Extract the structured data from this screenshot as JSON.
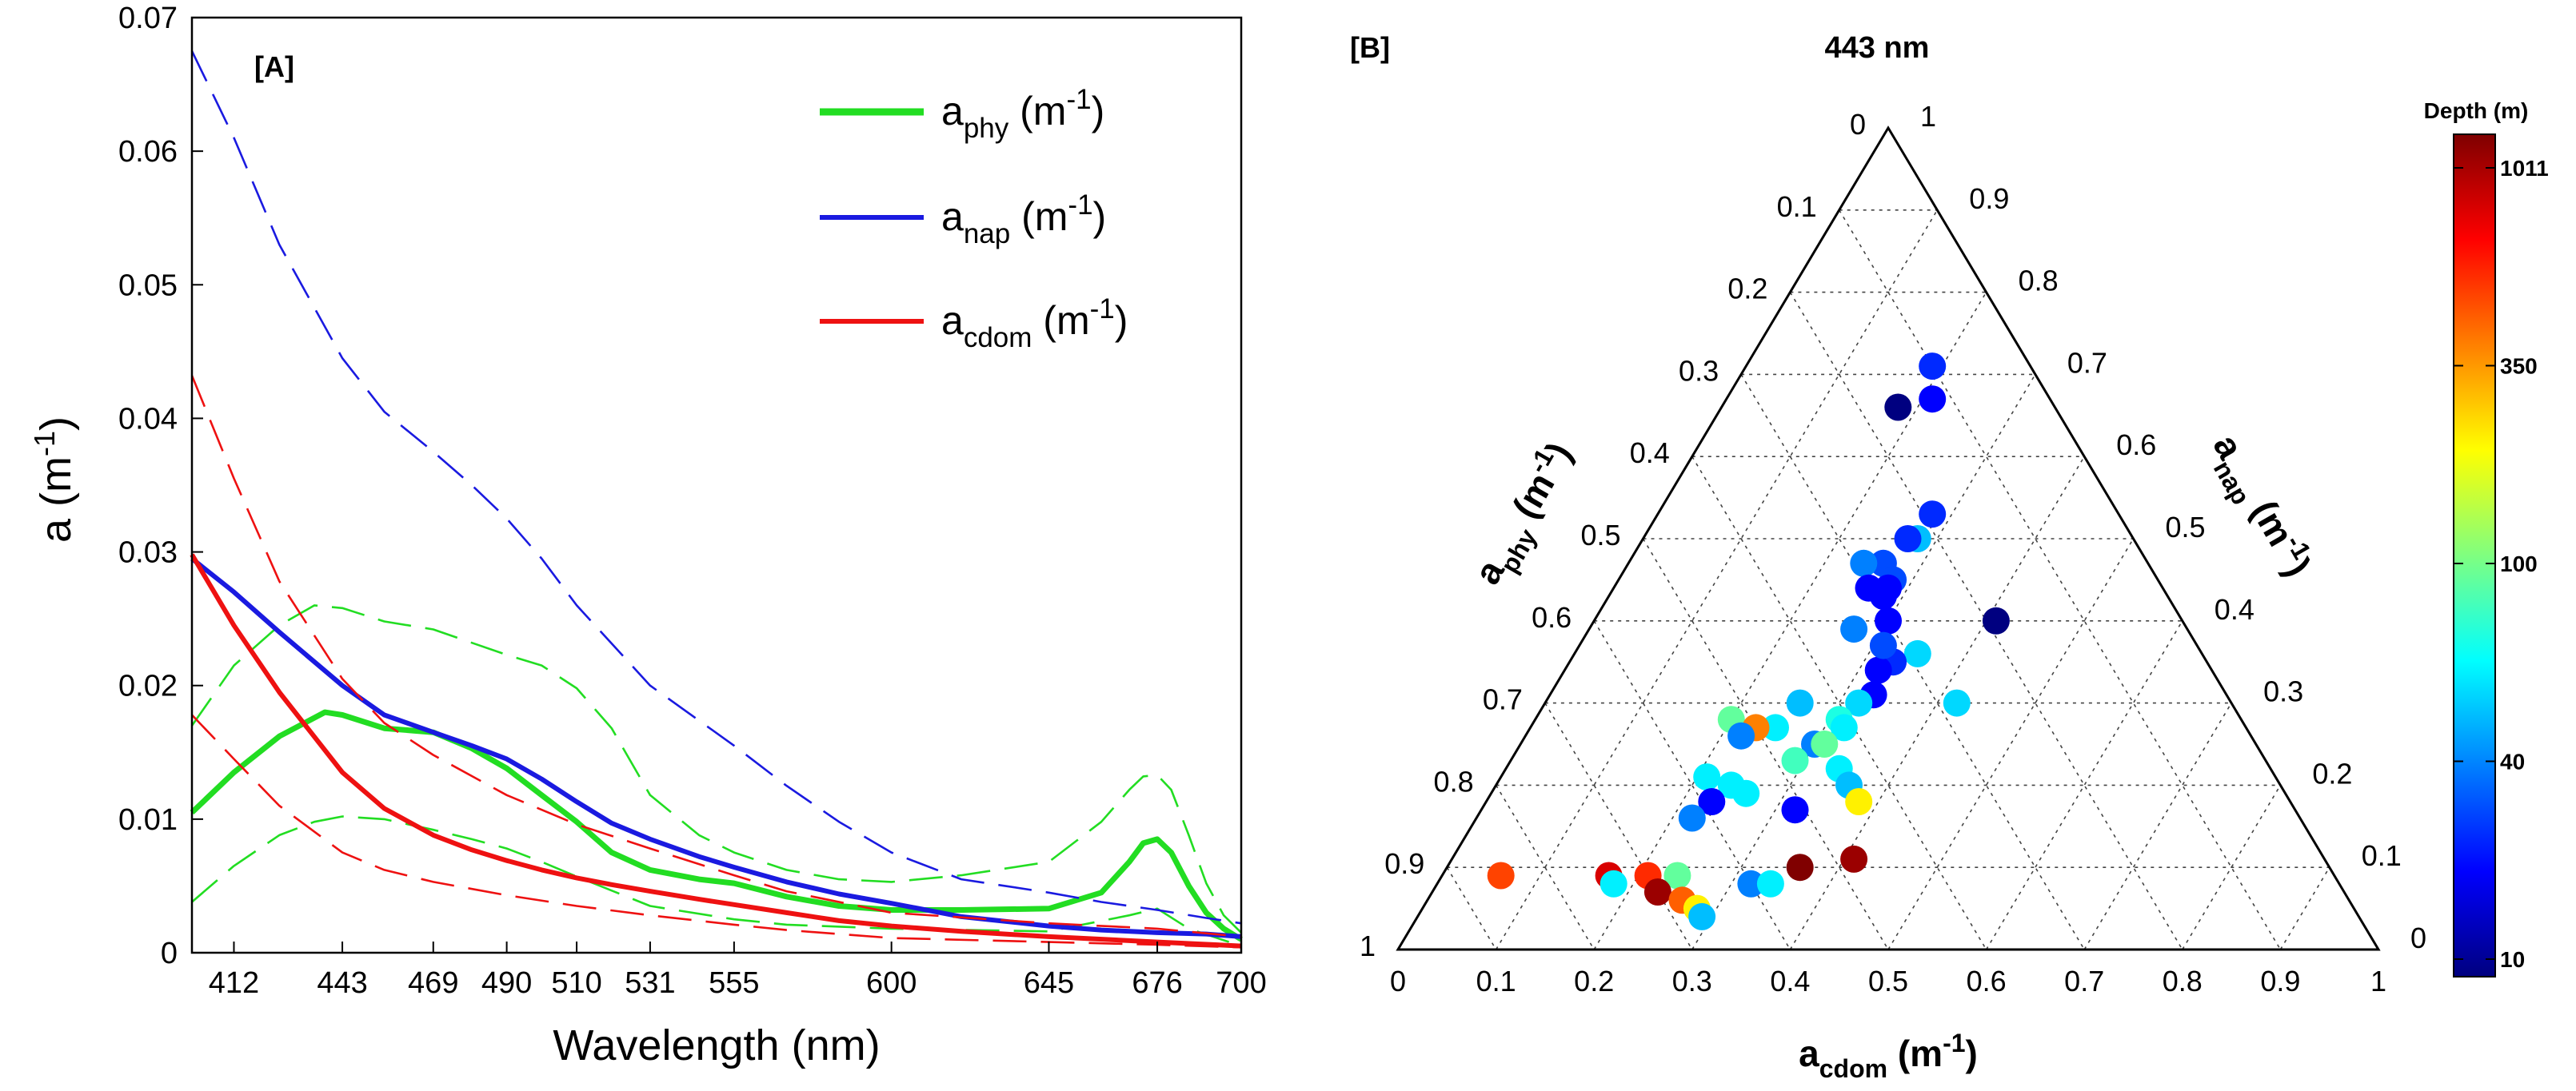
{
  "chart_data": [
    {
      "type": "line",
      "panel_label": "[A]",
      "xlabel": "Wavelength (nm)",
      "ylabel_base": "a (m",
      "ylabel_sup": "-1",
      "ylabel_tail": ")",
      "xlim": [
        400,
        700
      ],
      "ylim": [
        0,
        0.07
      ],
      "xticks": [
        412,
        443,
        469,
        490,
        510,
        531,
        555,
        600,
        645,
        676,
        700
      ],
      "yticks": [
        0,
        0.01,
        0.02,
        0.03,
        0.04,
        0.05,
        0.06,
        0.07
      ],
      "ytick_labels": [
        "0",
        "0.01",
        "0.02",
        "0.03",
        "0.04",
        "0.05",
        "0.06",
        "0.07"
      ],
      "grid": false,
      "legend_position": "top-right",
      "series": [
        {
          "name": "a_phy (m^-1)",
          "legend_base": "a",
          "legend_sub": "phy",
          "legend_mid": " (m",
          "legend_sup": "-1",
          "legend_tail": ")",
          "color": "#22dd22",
          "style": "mean",
          "x": [
            400,
            412,
            425,
            438,
            443,
            455,
            469,
            480,
            490,
            500,
            510,
            520,
            531,
            545,
            555,
            570,
            585,
            600,
            620,
            645,
            660,
            668,
            672,
            676,
            680,
            685,
            690,
            695,
            700
          ],
          "y": [
            0.0105,
            0.0135,
            0.0162,
            0.018,
            0.0178,
            0.0168,
            0.0165,
            0.0153,
            0.0138,
            0.0118,
            0.0098,
            0.0075,
            0.0062,
            0.0055,
            0.0052,
            0.0042,
            0.0035,
            0.0032,
            0.0032,
            0.0033,
            0.0045,
            0.0068,
            0.0082,
            0.0085,
            0.0075,
            0.005,
            0.003,
            0.0018,
            0.001
          ]
        },
        {
          "name": "a_phy (m^-1) envelope upper",
          "color": "#22dd22",
          "style": "envelope",
          "x": [
            400,
            412,
            425,
            435,
            443,
            455,
            469,
            480,
            490,
            500,
            510,
            520,
            531,
            545,
            555,
            570,
            585,
            600,
            620,
            645,
            660,
            668,
            672,
            676,
            680,
            685,
            690,
            695,
            700
          ],
          "y": [
            0.017,
            0.0215,
            0.0245,
            0.026,
            0.0258,
            0.0248,
            0.0242,
            0.0232,
            0.0223,
            0.0215,
            0.0198,
            0.0168,
            0.0118,
            0.0088,
            0.0075,
            0.0062,
            0.0055,
            0.0053,
            0.0058,
            0.0068,
            0.0098,
            0.0122,
            0.0132,
            0.0133,
            0.0122,
            0.0088,
            0.0052,
            0.0028,
            0.0015
          ]
        },
        {
          "name": "a_phy (m^-1) envelope lower",
          "color": "#22dd22",
          "style": "envelope",
          "x": [
            400,
            412,
            425,
            435,
            443,
            455,
            469,
            480,
            490,
            500,
            510,
            531,
            555,
            570,
            600,
            645,
            668,
            676,
            685,
            700
          ],
          "y": [
            0.0038,
            0.0065,
            0.0088,
            0.0098,
            0.0102,
            0.01,
            0.0092,
            0.0085,
            0.0078,
            0.0068,
            0.0057,
            0.0035,
            0.0025,
            0.0021,
            0.0018,
            0.0016,
            0.0028,
            0.0033,
            0.0018,
            0.0005
          ]
        },
        {
          "name": "a_nap (m^-1)",
          "legend_base": "a",
          "legend_sub": "nap",
          "legend_mid": " (m",
          "legend_sup": "-1",
          "legend_tail": ")",
          "color": "#1a1ae0",
          "style": "mean",
          "x": [
            400,
            412,
            425,
            443,
            455,
            469,
            480,
            490,
            500,
            510,
            520,
            531,
            545,
            555,
            570,
            585,
            600,
            620,
            645,
            660,
            676,
            690,
            700
          ],
          "y": [
            0.0295,
            0.027,
            0.024,
            0.02,
            0.0178,
            0.0165,
            0.0155,
            0.0145,
            0.013,
            0.0113,
            0.0097,
            0.0085,
            0.0072,
            0.0064,
            0.0053,
            0.0044,
            0.0037,
            0.0027,
            0.002,
            0.0017,
            0.0015,
            0.0014,
            0.0012
          ]
        },
        {
          "name": "a_nap (m^-1) envelope upper",
          "color": "#1a1ae0",
          "style": "envelope",
          "x": [
            400,
            412,
            425,
            443,
            455,
            469,
            480,
            490,
            500,
            510,
            531,
            555,
            570,
            585,
            600,
            620,
            645,
            660,
            676,
            690,
            700
          ],
          "y": [
            0.0675,
            0.061,
            0.053,
            0.0445,
            0.0405,
            0.0375,
            0.035,
            0.0325,
            0.0295,
            0.026,
            0.02,
            0.0155,
            0.0125,
            0.0098,
            0.0075,
            0.0055,
            0.0045,
            0.0038,
            0.0032,
            0.0026,
            0.0022
          ]
        },
        {
          "name": "a_cdom (m^-1)",
          "legend_base": "a",
          "legend_sub": "cdom",
          "legend_mid": " (m",
          "legend_sup": "-1",
          "legend_tail": ")",
          "color": "#ee1111",
          "style": "mean",
          "x": [
            400,
            412,
            425,
            443,
            455,
            469,
            480,
            490,
            500,
            510,
            520,
            531,
            545,
            555,
            570,
            585,
            600,
            620,
            645,
            676,
            700
          ],
          "y": [
            0.0298,
            0.0245,
            0.0195,
            0.0135,
            0.0108,
            0.0088,
            0.0077,
            0.0069,
            0.0062,
            0.0056,
            0.0051,
            0.0046,
            0.004,
            0.0036,
            0.003,
            0.0024,
            0.002,
            0.0016,
            0.0012,
            0.0008,
            0.0005
          ]
        },
        {
          "name": "a_cdom (m^-1) envelope upper",
          "color": "#ee1111",
          "style": "envelope",
          "x": [
            400,
            412,
            425,
            443,
            455,
            469,
            490,
            510,
            531,
            555,
            570,
            600,
            645,
            676,
            700
          ],
          "y": [
            0.0432,
            0.0355,
            0.0278,
            0.0205,
            0.0172,
            0.0148,
            0.0118,
            0.0096,
            0.0078,
            0.0058,
            0.0046,
            0.003,
            0.0022,
            0.0018,
            0.0012
          ]
        },
        {
          "name": "a_cdom (m^-1) envelope lower",
          "color": "#ee1111",
          "style": "envelope",
          "x": [
            400,
            412,
            425,
            443,
            455,
            469,
            490,
            510,
            531,
            555,
            570,
            600,
            645,
            676,
            700
          ],
          "y": [
            0.0178,
            0.0145,
            0.011,
            0.0075,
            0.0062,
            0.0053,
            0.0043,
            0.0035,
            0.0028,
            0.0021,
            0.0017,
            0.0011,
            0.0008,
            0.0006,
            0.0004
          ]
        }
      ]
    },
    {
      "type": "scatter",
      "subtype": "ternary",
      "panel_label": "[B]",
      "title": "443 nm",
      "axes": {
        "phy": {
          "label_base": "a",
          "label_sub": "phy",
          "label_mid": " (m",
          "label_sup": "-1",
          "label_tail": ")"
        },
        "nap": {
          "label_base": "a",
          "label_sub": "nap",
          "label_mid": " (m",
          "label_sup": "-1",
          "label_tail": ")"
        },
        "cdom": {
          "label_base": "a",
          "label_sub": "cdom",
          "label_mid": " (m",
          "label_sup": "-1",
          "label_tail": ")"
        }
      },
      "tick_values": [
        0,
        0.1,
        0.2,
        0.3,
        0.4,
        0.5,
        0.6,
        0.7,
        0.8,
        0.9,
        1
      ],
      "tick_labels": [
        "0",
        "0.1",
        "0.2",
        "0.3",
        "0.4",
        "0.5",
        "0.6",
        "0.7",
        "0.8",
        "0.9",
        "1"
      ],
      "grid": true,
      "colorbar": {
        "title": "Depth (m)",
        "ticks": [
          "1011",
          "350",
          "100",
          "40",
          "10"
        ],
        "colormap": "jet",
        "scale": "nonlinear"
      },
      "points": [
        {
          "cdom": 0.19,
          "nap": 0.71,
          "depth": 25
        },
        {
          "cdom": 0.18,
          "nap": 0.66,
          "depth": 10
        },
        {
          "cdom": 0.21,
          "nap": 0.67,
          "depth": 20
        },
        {
          "cdom": 0.28,
          "nap": 0.53,
          "depth": 25
        },
        {
          "cdom": 0.28,
          "nap": 0.5,
          "depth": 50
        },
        {
          "cdom": 0.27,
          "nap": 0.5,
          "depth": 25
        },
        {
          "cdom": 0.26,
          "nap": 0.47,
          "depth": 30
        },
        {
          "cdom": 0.24,
          "nap": 0.47,
          "depth": 40
        },
        {
          "cdom": 0.28,
          "nap": 0.45,
          "depth": 30
        },
        {
          "cdom": 0.28,
          "nap": 0.44,
          "depth": 20
        },
        {
          "cdom": 0.26,
          "nap": 0.44,
          "depth": 20
        },
        {
          "cdom": 0.28,
          "nap": 0.43,
          "depth": 20
        },
        {
          "cdom": 0.3,
          "nap": 0.4,
          "depth": 20
        },
        {
          "cdom": 0.35,
          "nap": 0.36,
          "depth": 55
        },
        {
          "cdom": 0.41,
          "nap": 0.4,
          "depth": 10
        },
        {
          "cdom": 0.33,
          "nap": 0.35,
          "depth": 25
        },
        {
          "cdom": 0.32,
          "nap": 0.34,
          "depth": 20
        },
        {
          "cdom": 0.31,
          "nap": 0.37,
          "depth": 30
        },
        {
          "cdom": 0.27,
          "nap": 0.39,
          "depth": 40
        },
        {
          "cdom": 0.42,
          "nap": 0.3,
          "depth": 55
        },
        {
          "cdom": 0.26,
          "nap": 0.3,
          "depth": 50
        },
        {
          "cdom": 0.33,
          "nap": 0.31,
          "depth": 20
        },
        {
          "cdom": 0.32,
          "nap": 0.3,
          "depth": 55
        },
        {
          "cdom": 0.31,
          "nap": 0.28,
          "depth": 70
        },
        {
          "cdom": 0.32,
          "nap": 0.27,
          "depth": 60
        },
        {
          "cdom": 0.2,
          "nap": 0.28,
          "depth": 90
        },
        {
          "cdom": 0.25,
          "nap": 0.27,
          "depth": 60
        },
        {
          "cdom": 0.3,
          "nap": 0.25,
          "depth": 40
        },
        {
          "cdom": 0.23,
          "nap": 0.27,
          "depth": 350
        },
        {
          "cdom": 0.22,
          "nap": 0.26,
          "depth": 40
        },
        {
          "cdom": 0.31,
          "nap": 0.25,
          "depth": 90
        },
        {
          "cdom": 0.29,
          "nap": 0.23,
          "depth": 80
        },
        {
          "cdom": 0.34,
          "nap": 0.22,
          "depth": 60
        },
        {
          "cdom": 0.36,
          "nap": 0.2,
          "depth": 50
        },
        {
          "cdom": 0.38,
          "nap": 0.18,
          "depth": 200
        },
        {
          "cdom": 0.21,
          "nap": 0.21,
          "depth": 60
        },
        {
          "cdom": 0.24,
          "nap": 0.2,
          "depth": 60
        },
        {
          "cdom": 0.26,
          "nap": 0.19,
          "depth": 60
        },
        {
          "cdom": 0.32,
          "nap": 0.17,
          "depth": 20
        },
        {
          "cdom": 0.23,
          "nap": 0.18,
          "depth": 20
        },
        {
          "cdom": 0.22,
          "nap": 0.16,
          "depth": 40
        },
        {
          "cdom": 0.06,
          "nap": 0.09,
          "depth": 450
        },
        {
          "cdom": 0.17,
          "nap": 0.09,
          "depth": 700
        },
        {
          "cdom": 0.21,
          "nap": 0.09,
          "depth": 500
        },
        {
          "cdom": 0.24,
          "nap": 0.09,
          "depth": 90
        },
        {
          "cdom": 0.18,
          "nap": 0.08,
          "depth": 60
        },
        {
          "cdom": 0.23,
          "nap": 0.07,
          "depth": 900
        },
        {
          "cdom": 0.26,
          "nap": 0.06,
          "depth": 400
        },
        {
          "cdom": 0.28,
          "nap": 0.05,
          "depth": 200
        },
        {
          "cdom": 0.29,
          "nap": 0.04,
          "depth": 50
        },
        {
          "cdom": 0.32,
          "nap": 0.08,
          "depth": 40
        },
        {
          "cdom": 0.34,
          "nap": 0.08,
          "depth": 60
        },
        {
          "cdom": 0.36,
          "nap": 0.1,
          "depth": 1011
        },
        {
          "cdom": 0.41,
          "nap": 0.11,
          "depth": 900
        }
      ]
    }
  ]
}
